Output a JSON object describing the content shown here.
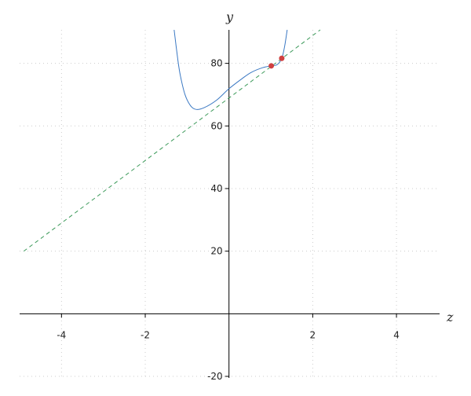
{
  "chart_data": {
    "type": "line",
    "xlabel": "z",
    "ylabel": "y",
    "xlim": [
      -5,
      5.03
    ],
    "ylim": [
      -20.5,
      90.7
    ],
    "grid": true,
    "x_ticks": [
      -4,
      -2,
      2,
      4
    ],
    "x_tick_labels": [
      "-4",
      "-2",
      "2",
      "4"
    ],
    "y_ticks": [
      -20,
      20,
      40,
      60,
      80
    ],
    "y_tick_labels": [
      "-20",
      "20",
      "40",
      "60",
      "80"
    ],
    "series": [
      {
        "style": "solid",
        "color": "#3a78c3",
        "points": [
          [
            -1.31,
            90.7
          ],
          [
            -1.22,
            81
          ],
          [
            -1.16,
            76
          ],
          [
            -1.05,
            70
          ],
          [
            -0.92,
            66.5
          ],
          [
            -0.79,
            65.3
          ],
          [
            -0.6,
            65.8
          ],
          [
            -0.3,
            68.2
          ],
          [
            0,
            71.9
          ],
          [
            0.3,
            75
          ],
          [
            0.53,
            77.1
          ],
          [
            0.8,
            78.6
          ],
          [
            1.01,
            79.2
          ],
          [
            1.15,
            79.6
          ],
          [
            1.26,
            81.6
          ],
          [
            1.33,
            85.5
          ],
          [
            1.39,
            90.7
          ]
        ]
      },
      {
        "style": "dashed",
        "color": "#3c9a5a",
        "points": [
          [
            -4.9,
            20
          ],
          [
            2.18,
            90.7
          ]
        ]
      }
    ],
    "highlight_points": {
      "color": "#d04040",
      "points": [
        [
          1.01,
          79.2
        ],
        [
          1.26,
          81.6
        ]
      ]
    }
  }
}
